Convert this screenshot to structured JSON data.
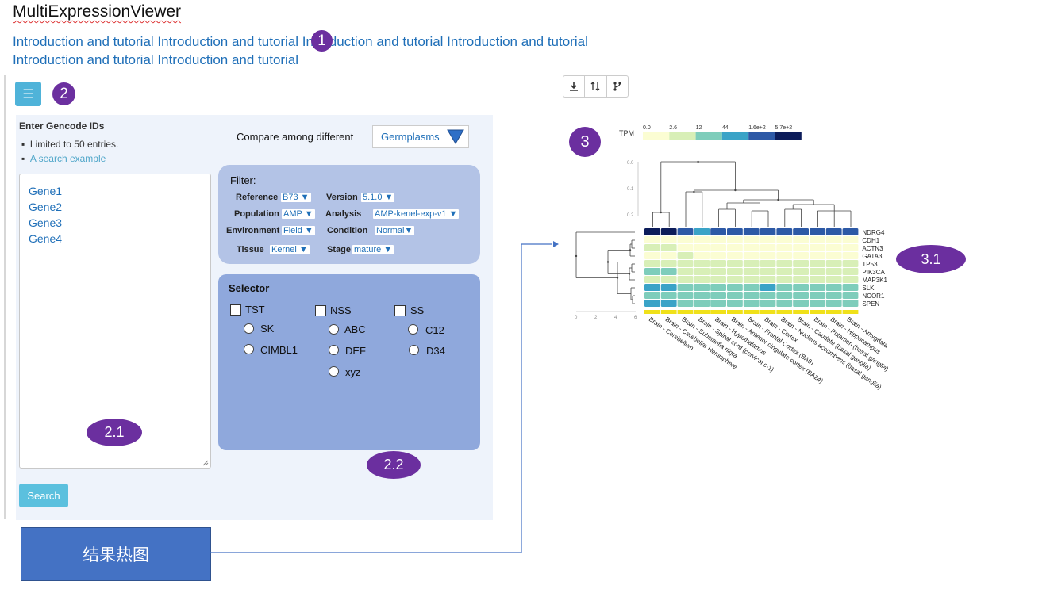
{
  "app": {
    "title": "MultiExpressionViewer"
  },
  "intro": {
    "line1": "Introduction and tutorial Introduction and tutorial Introduction and tutorial Introduction and tutorial",
    "line2": "Introduction and tutorial Introduction and tutorial"
  },
  "callouts": {
    "c1": "1",
    "c2": "2",
    "c21": "2.1",
    "c22": "2.2",
    "c3": "3",
    "c31": "3.1"
  },
  "sidebar": {
    "menu_icon": "hamburger-icon",
    "heading": "Enter Gencode IDs",
    "note": "Limited to 50 entries.",
    "example_link": "A search example",
    "genes": [
      "Gene1",
      "Gene2",
      "Gene3",
      "Gene4"
    ],
    "search_label": "Search"
  },
  "compare": {
    "label": "Compare among different",
    "value": "Germplasms"
  },
  "filter": {
    "title": "Filter:",
    "fields": [
      {
        "label": "Reference",
        "value": "B73"
      },
      {
        "label": "Version",
        "value": "5.1.0"
      },
      {
        "label": "Population",
        "value": "AMP"
      },
      {
        "label": "Analysis",
        "value": "AMP-kenel-exp-v1"
      },
      {
        "label": "Environment",
        "value": "Field"
      },
      {
        "label": "Condition",
        "value": "Normal"
      },
      {
        "label": "Tissue",
        "value": "Kernel"
      },
      {
        "label": "Stage",
        "value": "mature"
      }
    ]
  },
  "selector": {
    "title": "Selector",
    "groups": [
      {
        "label": "TST",
        "options": [
          "SK",
          "CIMBL1"
        ]
      },
      {
        "label": "NSS",
        "options": [
          "ABC",
          "DEF",
          "xyz"
        ]
      },
      {
        "label": "SS",
        "options": [
          "C12",
          "D34"
        ]
      }
    ]
  },
  "result_box": {
    "label": "结果热图"
  },
  "toolbar": {
    "icons": [
      "download-icon",
      "sort-icon",
      "tree-icon"
    ]
  },
  "chart_data": {
    "type": "heatmap",
    "legend_title": "TPM",
    "legend_ticks": [
      "0.0",
      "2.6",
      "12",
      "44",
      "1.6e+2",
      "5.7e+2"
    ],
    "legend_colors": [
      "#fbfdd3",
      "#d8efb7",
      "#7ecdbb",
      "#3aa3c7",
      "#2d59a6",
      "#0c1c5a"
    ],
    "rows": [
      "NDRG4",
      "CDH1",
      "ACTN3",
      "GATA3",
      "TP53",
      "PIK3CA",
      "MAP3K1",
      "SLK",
      "NCOR1",
      "SPEN"
    ],
    "columns": [
      "Brain - Cerebellum",
      "Brain - Cerebellar Hemisphere",
      "Brain - Substantia nigra",
      "Brain - Spinal cord (cervical c-1)",
      "Brain - Hypothalamus",
      "Brain - Anterior cingulate cortex (BA24)",
      "Brain - Frontal Cortex (BA9)",
      "Brain - Cortex",
      "Brain - Nucleus accumbens (basal ganglia)",
      "Brain - Caudate (basal ganglia)",
      "Brain - Putamen (basal ganglia)",
      "Brain - Hippocampus",
      "Brain - Amygdala"
    ],
    "matrix": [
      [
        5,
        5,
        4,
        3,
        4,
        4,
        4,
        4,
        4,
        4,
        4,
        4,
        4
      ],
      [
        0,
        0,
        0,
        0,
        0,
        0,
        0,
        0,
        0,
        0,
        0,
        0,
        0
      ],
      [
        1,
        1,
        0,
        0,
        0,
        0,
        0,
        0,
        0,
        0,
        0,
        0,
        0
      ],
      [
        0,
        0,
        1,
        0,
        0,
        0,
        0,
        0,
        0,
        0,
        0,
        0,
        0
      ],
      [
        1,
        1,
        1,
        1,
        1,
        1,
        1,
        1,
        1,
        1,
        1,
        1,
        1
      ],
      [
        2,
        2,
        1,
        1,
        1,
        1,
        1,
        1,
        1,
        1,
        1,
        1,
        1
      ],
      [
        1,
        1,
        1,
        1,
        1,
        1,
        1,
        1,
        1,
        1,
        1,
        1,
        1
      ],
      [
        3,
        3,
        2,
        2,
        2,
        2,
        2,
        3,
        2,
        2,
        2,
        2,
        2
      ],
      [
        2,
        2,
        2,
        2,
        2,
        2,
        2,
        2,
        2,
        2,
        2,
        2,
        2
      ],
      [
        3,
        3,
        2,
        2,
        2,
        2,
        2,
        2,
        2,
        2,
        2,
        2,
        2
      ]
    ],
    "row_dendro_ticks": [
      "0",
      "2",
      "4",
      "6"
    ],
    "col_dendro_ticks": [
      "0.0",
      "0.1",
      "0.2"
    ]
  }
}
